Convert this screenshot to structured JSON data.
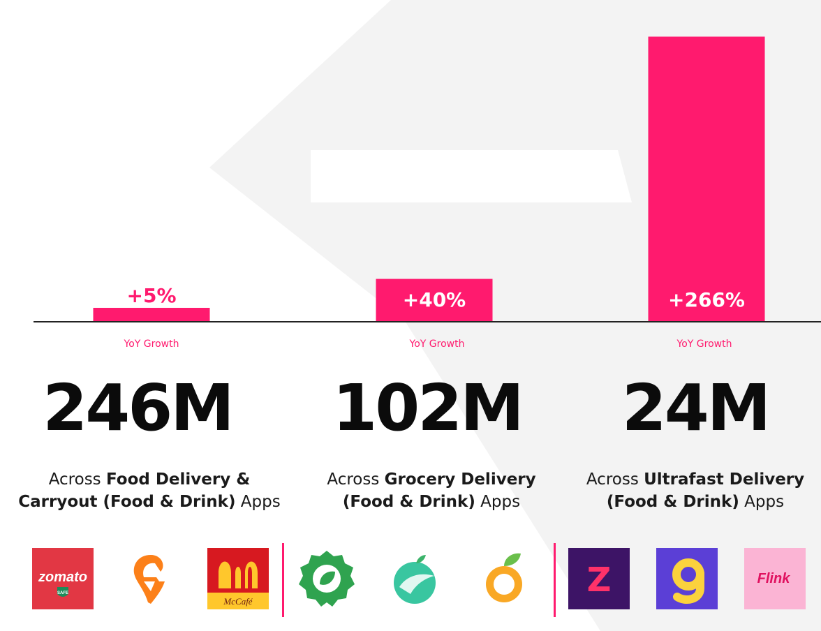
{
  "chart_data": {
    "type": "bar",
    "categories": [
      "Food Delivery & Carryout (Food & Drink) Apps",
      "Grocery Delivery (Food & Drink) Apps",
      "Ultrafast Delivery (Food & Drink) Apps"
    ],
    "values": [
      5,
      40,
      266
    ],
    "value_labels": [
      "+5%",
      "+40%",
      "+266%"
    ],
    "bar_color": "#ff1a6e",
    "ylim": [
      0,
      280
    ]
  },
  "segments": [
    {
      "yoy_label": "YoY Growth",
      "total": "246M",
      "desc_prefix": "Across ",
      "desc_bold1": "Food Delivery &",
      "desc_bold2": "Carryout (Food & Drink)",
      "desc_suffix": " Apps",
      "logos": [
        "zomato",
        "swiggy",
        "mcdonalds"
      ]
    },
    {
      "yoy_label": "YoY Growth",
      "total": "102M",
      "desc_prefix": "Across ",
      "desc_bold1": "Grocery Delivery",
      "desc_bold2": "(Food & Drink)",
      "desc_suffix": " Apps",
      "logos": [
        "dunzo",
        "grocery-leaf",
        "orange"
      ]
    },
    {
      "yoy_label": "YoY Growth",
      "total": "24M",
      "desc_prefix": "Across ",
      "desc_bold1": "Ultrafast Delivery",
      "desc_bold2": "(Food & Drink)",
      "desc_suffix": " Apps",
      "logos": [
        "zepto",
        "gopuff",
        "flink"
      ]
    }
  ],
  "logo_text": {
    "zomato": "zomato",
    "zomato_badge": "SAFE",
    "mccafe": "McCafé",
    "zepto": "Z",
    "flink": "Flink"
  },
  "colors": {
    "accent": "#ff1a6e",
    "text": "#0b0b0b"
  }
}
